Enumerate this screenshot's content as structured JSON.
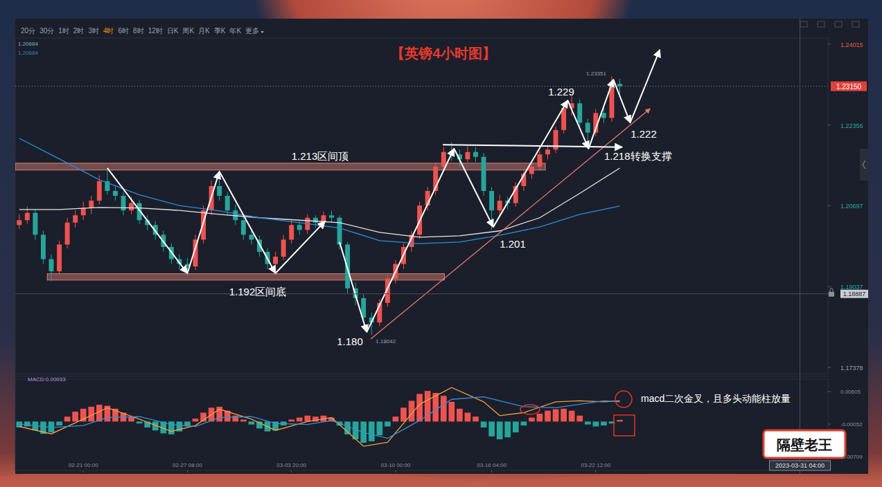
{
  "toolbar": {
    "items": [
      "20分",
      "30分",
      "1时",
      "2时",
      "3时",
      "4时",
      "6时",
      "8时",
      "12时",
      "日K",
      "周K",
      "月K",
      "季K",
      "年K",
      "更多"
    ],
    "selected": "4时"
  },
  "logo": "隔壁老王",
  "chart_data": {
    "type": "candlestick",
    "title": "【英镑4小时图】",
    "categories": [
      null,
      null,
      null,
      null,
      null,
      null,
      null,
      null,
      "02-21 00:00",
      null,
      null,
      null,
      null,
      null,
      null,
      null,
      null,
      null,
      null,
      null,
      null,
      "02-27 08:00",
      null,
      null,
      null,
      null,
      null,
      null,
      null,
      null,
      null,
      null,
      null,
      null,
      "03-03 20:00",
      null,
      null,
      null,
      null,
      null,
      null,
      null,
      null,
      null,
      null,
      null,
      null,
      "03-10 00:00",
      null,
      null,
      null,
      null,
      null,
      null,
      null,
      null,
      null,
      null,
      null,
      "03-16 04:00",
      null,
      null,
      null,
      null,
      null,
      null,
      null,
      null,
      null,
      null,
      null,
      null,
      "03-22 12:00",
      null,
      null,
      null
    ],
    "xlim": [
      -0.5,
      101
    ],
    "ylim": [
      1.1725,
      1.2414
    ],
    "yticks": [
      1.17378,
      1.19037,
      1.20697,
      1.22356,
      1.24015
    ],
    "y2lim": [
      -0.0099,
      0.0086
    ],
    "y2ticks": [
      -0.00709,
      -0.00052,
      0.00605
    ],
    "grid": false,
    "series": [
      {
        "type": "candlestick",
        "values": [
          [
            1.203,
            1.2052,
            1.2022,
            1.204
          ],
          [
            1.204,
            1.2068,
            1.2032,
            1.2055
          ],
          [
            1.2055,
            1.2062,
            1.2,
            1.201
          ],
          [
            1.201,
            1.2018,
            1.195,
            1.196
          ],
          [
            1.196,
            1.197,
            1.1915,
            1.1935
          ],
          [
            1.1935,
            1.1998,
            1.1928,
            1.199
          ],
          [
            1.199,
            1.2045,
            1.1982,
            1.2035
          ],
          [
            1.2035,
            1.206,
            1.2025,
            1.205
          ],
          [
            1.205,
            1.2078,
            1.204,
            1.2065
          ],
          [
            1.2065,
            1.209,
            1.2052,
            1.208
          ],
          [
            1.208,
            1.2132,
            1.2072,
            1.212
          ],
          [
            1.212,
            1.2148,
            1.2092,
            1.21
          ],
          [
            1.21,
            1.2112,
            1.208,
            1.209
          ],
          [
            1.209,
            1.2098,
            1.205,
            1.206
          ],
          [
            1.206,
            1.2088,
            1.2052,
            1.2075
          ],
          [
            1.2075,
            1.2082,
            1.2032,
            1.204
          ],
          [
            1.204,
            1.205,
            1.202,
            1.203
          ],
          [
            1.203,
            1.2038,
            1.2,
            1.201
          ],
          [
            1.201,
            1.2018,
            1.1975,
            1.1985
          ],
          [
            1.1985,
            1.1992,
            1.195,
            1.196
          ],
          [
            1.196,
            1.197,
            1.1938,
            1.195
          ],
          [
            1.195,
            1.1962,
            1.1925,
            1.1945
          ],
          [
            1.1945,
            1.201,
            1.1938,
            1.2
          ],
          [
            1.2,
            1.207,
            1.1992,
            1.206
          ],
          [
            1.206,
            1.2122,
            1.205,
            1.211
          ],
          [
            1.211,
            1.2142,
            1.208,
            1.209
          ],
          [
            1.209,
            1.2098,
            1.205,
            1.206
          ],
          [
            1.206,
            1.2072,
            1.203,
            1.204
          ],
          [
            1.204,
            1.2048,
            1.2,
            1.201
          ],
          [
            1.201,
            1.202,
            1.199,
            1.2
          ],
          [
            1.2,
            1.2008,
            1.1965,
            1.1975
          ],
          [
            1.1975,
            1.1982,
            1.194,
            1.195
          ],
          [
            1.195,
            1.1975,
            1.1928,
            1.1965
          ],
          [
            1.1965,
            1.201,
            1.1958,
            1.2
          ],
          [
            1.2,
            1.204,
            1.1992,
            1.203
          ],
          [
            1.203,
            1.2038,
            1.201,
            1.202
          ],
          [
            1.202,
            1.2052,
            1.2012,
            1.2045
          ],
          [
            1.2045,
            1.205,
            1.2025,
            1.2035
          ],
          [
            1.2035,
            1.2058,
            1.2028,
            1.205
          ],
          [
            1.205,
            1.206,
            1.2035,
            1.2045
          ],
          [
            1.2045,
            1.205,
            1.198,
            1.199
          ],
          [
            1.199,
            1.1995,
            1.189,
            1.19
          ],
          [
            1.19,
            1.1912,
            1.1865,
            1.188
          ],
          [
            1.188,
            1.1888,
            1.183,
            1.184
          ],
          [
            1.184,
            1.185,
            1.18042,
            1.183
          ],
          [
            1.183,
            1.1878,
            1.1822,
            1.187
          ],
          [
            1.187,
            1.1928,
            1.1862,
            1.192
          ],
          [
            1.192,
            1.1958,
            1.191,
            1.195
          ],
          [
            1.195,
            1.1992,
            1.194,
            1.1985
          ],
          [
            1.1985,
            1.2018,
            1.1975,
            1.201
          ],
          [
            1.201,
            1.2078,
            1.2002,
            1.207
          ],
          [
            1.207,
            1.2108,
            1.206,
            1.21
          ],
          [
            1.21,
            1.2158,
            1.2092,
            1.215
          ],
          [
            1.215,
            1.219,
            1.214,
            1.218
          ],
          [
            1.218,
            1.22,
            1.2162,
            1.2175
          ],
          [
            1.2175,
            1.2185,
            1.215,
            1.2165
          ],
          [
            1.2165,
            1.2192,
            1.2158,
            1.218
          ],
          [
            1.218,
            1.219,
            1.216,
            1.217
          ],
          [
            1.217,
            1.2178,
            1.209,
            1.21
          ],
          [
            1.21,
            1.2108,
            1.202,
            1.206
          ],
          [
            1.206,
            1.2092,
            1.205,
            1.208
          ],
          [
            1.208,
            1.2088,
            1.2062,
            1.2075
          ],
          [
            1.2075,
            1.2118,
            1.2068,
            1.211
          ],
          [
            1.211,
            1.2142,
            1.21,
            1.2135
          ],
          [
            1.2135,
            1.216,
            1.2125,
            1.215
          ],
          [
            1.215,
            1.2182,
            1.2142,
            1.2175
          ],
          [
            1.2175,
            1.2195,
            1.2165,
            1.2185
          ],
          [
            1.2185,
            1.2232,
            1.2178,
            1.2225
          ],
          [
            1.2225,
            1.2278,
            1.2218,
            1.227
          ],
          [
            1.227,
            1.2295,
            1.2255,
            1.228
          ],
          [
            1.228,
            1.2288,
            1.2232,
            1.224
          ],
          [
            1.224,
            1.2248,
            1.2185,
            1.222
          ],
          [
            1.222,
            1.2268,
            1.2212,
            1.226
          ],
          [
            1.226,
            1.2272,
            1.224,
            1.225
          ],
          [
            1.225,
            1.23351,
            1.2242,
            1.232
          ],
          [
            1.232,
            1.233,
            1.23,
            1.2315
          ]
        ]
      },
      {
        "type": "line",
        "color": "#e6e6e6",
        "x": [
          0,
          5,
          10,
          15,
          20,
          25,
          30,
          35,
          40,
          45,
          50,
          55,
          60,
          65,
          70,
          75
        ],
        "values": [
          1.2062,
          1.2062,
          1.2066,
          1.2065,
          1.206,
          1.2052,
          1.2045,
          1.204,
          1.2035,
          1.2015,
          1.2005,
          1.2008,
          1.2018,
          1.2045,
          1.2095,
          1.2147
        ]
      },
      {
        "type": "line",
        "color": "#2a8fd6",
        "x": [
          0,
          5,
          10,
          15,
          20,
          25,
          30,
          35,
          40,
          45,
          50,
          55,
          60,
          65,
          70,
          75
        ],
        "values": [
          1.2208,
          1.2166,
          1.2123,
          1.2092,
          1.207,
          1.2059,
          1.2045,
          1.2035,
          1.2024,
          1.1998,
          1.1992,
          1.1995,
          1.2009,
          1.2026,
          1.2052,
          1.2069
        ]
      },
      {
        "type": "bar",
        "axis": "y2",
        "values": [
          -0.0012,
          -0.001,
          -0.0018,
          -0.0025,
          -0.0022,
          -0.0008,
          0.001,
          0.002,
          0.0026,
          0.003,
          0.0034,
          0.0032,
          0.0026,
          0.0018,
          0.001,
          -0.0004,
          -0.0012,
          -0.0018,
          -0.0024,
          -0.0026,
          -0.002,
          -0.001,
          0.0006,
          0.0018,
          0.0028,
          0.003,
          0.0022,
          0.0012,
          0.0004,
          -0.0006,
          -0.0014,
          -0.002,
          -0.0018,
          -0.0008,
          0.0004,
          0.0008,
          0.0012,
          0.001,
          0.0012,
          0.0008,
          -0.0008,
          -0.0026,
          -0.0036,
          -0.0043,
          -0.004,
          -0.0028,
          -0.001,
          0.001,
          0.0028,
          0.0042,
          0.0056,
          0.0062,
          0.0058,
          0.0052,
          0.004,
          0.0026,
          0.0018,
          0.001,
          -0.0012,
          -0.003,
          -0.0036,
          -0.0032,
          -0.0022,
          -0.0008,
          0.0008,
          0.0016,
          0.0022,
          0.0025,
          0.0026,
          0.0022,
          0.0012,
          -0.0006,
          -0.001,
          -0.0008,
          -0.0004,
          0.00033
        ]
      },
      {
        "type": "line",
        "axis": "y2",
        "color": "#f0a040",
        "x": [
          0,
          4,
          8,
          11,
          15,
          19,
          22,
          25,
          29,
          32,
          36,
          39,
          43,
          46,
          50,
          54,
          58,
          60,
          63,
          67,
          70,
          73,
          75
        ],
        "values": [
          -0.001,
          -0.0025,
          0.0005,
          0.0028,
          0.0005,
          -0.002,
          -0.0008,
          0.0025,
          0.0005,
          -0.0018,
          0,
          0.0008,
          -0.005,
          -0.0042,
          0.0035,
          0.0069,
          0.004,
          0.0012,
          0.0018,
          0.004,
          0.0042,
          0.004,
          0.0042
        ]
      },
      {
        "type": "line",
        "axis": "y2",
        "color": "#3a8fd8",
        "x": [
          0,
          4,
          8,
          11,
          15,
          19,
          22,
          25,
          29,
          32,
          36,
          39,
          43,
          46,
          50,
          54,
          58,
          60,
          63,
          67,
          70,
          73,
          75
        ],
        "values": [
          -0.0005,
          -0.0012,
          -0.0008,
          0.0008,
          0.001,
          -0.0006,
          -0.001,
          0.0008,
          0.001,
          -0.0004,
          -0.0006,
          0.0002,
          -0.0022,
          -0.0034,
          0.0002,
          0.0045,
          0.005,
          0.0042,
          0.003,
          0.0028,
          0.0035,
          0.0042,
          0.004
        ]
      }
    ],
    "ma_labels": [
      "1.20684",
      "1.20684"
    ],
    "macd_label": "MACD:0.00033",
    "last_price": {
      "value": 1.2315,
      "label": "1.23150"
    },
    "crosshair": {
      "x": 97.5,
      "value": 1.18887,
      "label": "2023-03-31 04:00"
    },
    "max_price": 1.23351,
    "min_price": 1.18042,
    "annotations": {
      "bands": [
        {
          "label": "1.213区间顶",
          "x": [
            -0.5,
            65.7
          ],
          "values": [
            1.2143,
            1.2157
          ]
        },
        {
          "label": "1.192区间底",
          "x": [
            3.5,
            53.1
          ],
          "values": [
            1.1917,
            1.193
          ]
        }
      ],
      "point_labels": [
        "1.180",
        "1.201",
        "1.229",
        "1.222"
      ],
      "support_line": {
        "label": "1.218转换支撑",
        "x": [
          52.9,
          75.3
        ],
        "values": [
          1.2195,
          1.219
        ]
      },
      "trendline": {
        "color": "#e07a6c",
        "x": [
          43.9,
          78.8
        ],
        "values": [
          1.1796,
          1.2269
        ]
      },
      "zigzags": [
        {
          "x": [
            11,
            21,
            25,
            32,
            38.2
          ],
          "values": [
            1.2147,
            1.1931,
            1.214,
            1.1931,
            1.2038
          ]
        },
        {
          "x": [
            40,
            43.4,
            54.3,
            59.2,
            68.5,
            71.1,
            74.2,
            76.3,
            80
          ],
          "values": [
            1.1995,
            1.181,
            1.2187,
            1.2026,
            1.2286,
            1.2187,
            1.2329,
            1.224,
            1.239
          ]
        }
      ],
      "macd_note": "macd二次金叉，且多头动能柱放量"
    }
  }
}
